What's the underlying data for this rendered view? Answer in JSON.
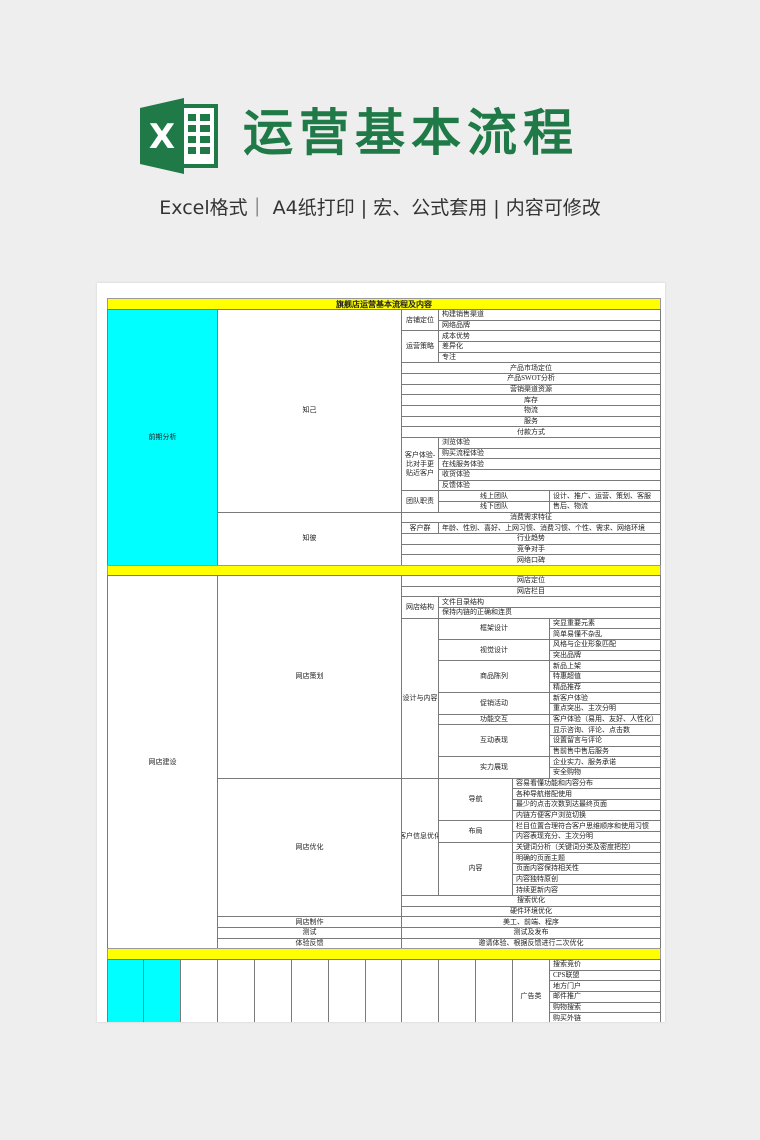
{
  "header": {
    "title": "运营基本流程",
    "subtitle": "Excel格式｜ A4纸打印 | 宏、公式套用 | 内容可修改",
    "logo_letter": "X",
    "brand_color": "#1f7a48"
  },
  "sheet": {
    "title": "旗舰店运营基本流程及内容",
    "colors": {
      "phase_fill": "#00ffff",
      "separator_fill": "#ffff00"
    },
    "s1": {
      "phase": "前期分析",
      "self": "知己",
      "rival": "知彼",
      "store_pos": {
        "label": "店铺定位",
        "items": [
          "构建销售渠道",
          "网络品牌"
        ]
      },
      "strategy": {
        "label": "运营策略",
        "items": [
          "成本优势",
          "差异化",
          "专注"
        ]
      },
      "rows_a": [
        "产品市场定位",
        "产品SWOT分析",
        "营销渠道资源",
        "库存",
        "物流",
        "服务",
        "付款方式"
      ],
      "cx": {
        "label": "客户体验-比对手更贴近客户",
        "items": [
          "浏览体验",
          "购买流程体验",
          "在线服务体验",
          "收货体验",
          "反馈体验"
        ]
      },
      "team": {
        "label": "团队职责",
        "rows": [
          {
            "name": "线上团队",
            "duty": "设计、推广、运营、策划、客服"
          },
          {
            "name": "线下团队",
            "duty": "售后、物流"
          }
        ]
      },
      "demand": "消费需求特征",
      "customers": {
        "label": "客户群",
        "text": "年龄、性别、喜好、上网习惯、消费习惯、个性、需求、网络环境"
      },
      "rows_b": [
        "行业趋势",
        "竞争对手",
        "网络口碑"
      ]
    },
    "s2": {
      "phase": "网店建设",
      "plan": "网店策划",
      "optimize": "网店优化",
      "rows_a": [
        "网店定位",
        "网店栏目"
      ],
      "structure": {
        "label": "网店结构",
        "items": [
          "文件目录结构",
          "保持内链的正确和连贯"
        ]
      },
      "design": {
        "label": "设计与内容",
        "groups": [
          {
            "label": "框架设计",
            "items": [
              "突显重要元素",
              "简单易懂不杂乱"
            ]
          },
          {
            "label": "视觉设计",
            "items": [
              "风格与企业形象匹配",
              "突出品牌"
            ]
          },
          {
            "label": "商品陈列",
            "items": [
              "新品上架",
              "特惠超值",
              "精品推荐"
            ]
          },
          {
            "label": "促销活动",
            "items": [
              "新客户体验",
              "重点突出、主次分明"
            ]
          },
          {
            "label": "功能交互",
            "items": [
              "客户体验（易用、友好、人性化）"
            ]
          },
          {
            "label": "互动表现",
            "items": [
              "显示咨询、评论、点击数",
              "设置留言与评论",
              "售前售中售后服务"
            ]
          },
          {
            "label": "实力展现",
            "items": [
              "企业实力、服务承诺",
              "安全购物"
            ]
          }
        ]
      },
      "cust_opt": {
        "label": "客户信息优化",
        "groups": [
          {
            "label": "导航",
            "items": [
              "容易看懂功能和内容分布",
              "各种导航搭配使用",
              "最少的点击次数到达最终页面",
              "内链方便客户浏览切换"
            ]
          },
          {
            "label": "布局",
            "items": [
              "栏目位置合理符合客户思维顺序和使用习惯",
              "内容表现充分、主次分明"
            ]
          },
          {
            "label": "内容",
            "items": [
              "关键词分析（关键词分类及密度把控）",
              "明确的页面主题",
              "页面内容保持相关性",
              "内容独特原创",
              "持续更新内容"
            ]
          }
        ]
      },
      "rows_b": [
        "搜索优化",
        "硬件环境优化"
      ],
      "tail": [
        {
          "label": "网店制作",
          "value": "美工、前端、程序"
        },
        {
          "label": "测试",
          "value": "测试及发布"
        },
        {
          "label": "体验反馈",
          "value": "邀请体验、根据反馈进行二次优化"
        }
      ]
    },
    "s3": {
      "ads": {
        "label": "广告类",
        "items": [
          "搜索竞价",
          "CPS联盟",
          "地方门户",
          "邮件推广",
          "购物搜索",
          "购买外链"
        ]
      }
    }
  }
}
